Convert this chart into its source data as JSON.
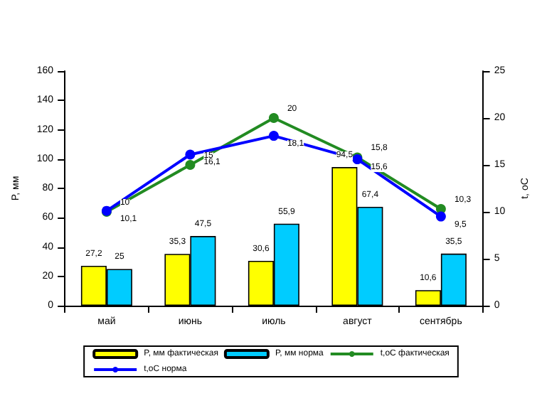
{
  "chart_data": {
    "type": "bar",
    "categories": [
      "май",
      "июнь",
      "июль",
      "август",
      "сентябрь"
    ],
    "ylabel": "P, мм",
    "y2label": "t, oC",
    "ylim": [
      0,
      160
    ],
    "yticks": [
      0,
      20,
      40,
      60,
      80,
      100,
      120,
      140,
      160
    ],
    "y2lim": [
      0,
      25
    ],
    "y2ticks": [
      0,
      5,
      10,
      15,
      20,
      25
    ],
    "series": [
      {
        "name": "P, мм фактическая",
        "color": "#ffff00",
        "values": [
          27.2,
          35.3,
          30.6,
          94.5,
          10.6
        ],
        "value_labels": [
          "27,2",
          "35,3",
          "30,6",
          "94,5",
          "10,6"
        ]
      },
      {
        "name": "P, мм норма",
        "color": "#00ccff",
        "values": [
          25,
          47.5,
          55.9,
          67.4,
          35.5
        ],
        "value_labels": [
          "25",
          "47,5",
          "55,9",
          "67,4",
          "35,5"
        ]
      },
      {
        "name": "t,oC фактическая",
        "type": "line",
        "axis": "y2",
        "color": "#228b22",
        "values": [
          10,
          15,
          20,
          15.8,
          10.3
        ],
        "value_labels": [
          "10",
          "15",
          "20",
          "15,8",
          "10,3"
        ]
      },
      {
        "name": "t,oC норма",
        "type": "line",
        "axis": "y2",
        "color": "#0000ff",
        "values": [
          10.1,
          16.1,
          18.1,
          15.6,
          9.5
        ],
        "value_labels": [
          "10,1",
          "16,1",
          "18,1",
          "15,6",
          "9,5"
        ]
      }
    ],
    "marker": "circle",
    "grid": false,
    "legend": "bottom"
  }
}
